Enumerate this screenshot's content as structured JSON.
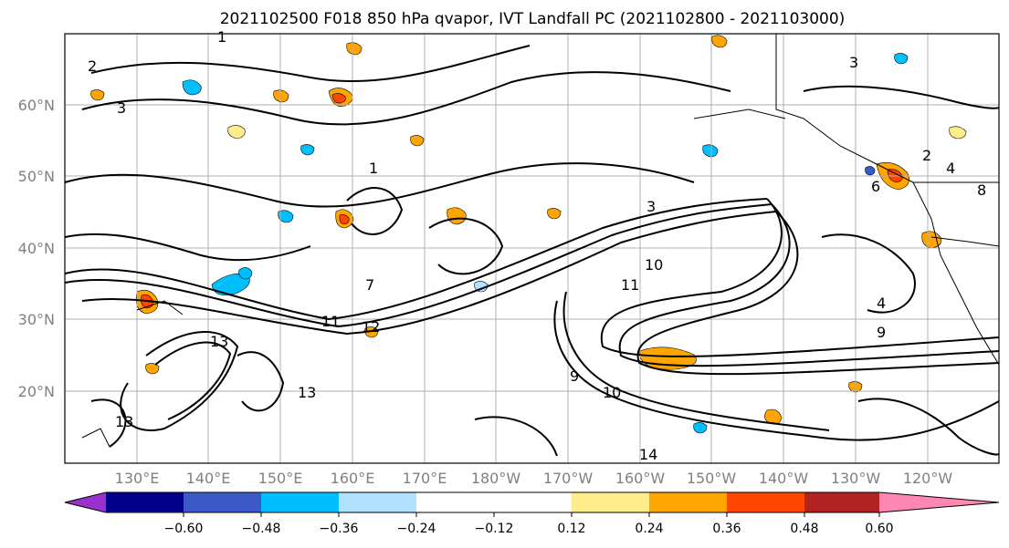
{
  "title": "2021102500 F018 850 hPa qvapor, IVT Landfall PC (2021102800 - 2021103000)",
  "map": {
    "lon_labels": [
      "130°E",
      "140°E",
      "150°E",
      "160°E",
      "170°E",
      "180°W",
      "170°W",
      "160°W",
      "150°W",
      "140°W",
      "130°W",
      "120°W"
    ],
    "lat_labels": [
      "20°N",
      "30°N",
      "40°N",
      "50°N",
      "60°N"
    ],
    "contour_labels": [
      "1",
      "2",
      "3",
      "3",
      "3",
      "4",
      "1",
      "2",
      "6",
      "7",
      "9",
      "10",
      "11",
      "13",
      "11",
      "14",
      "13",
      "13",
      "12",
      "10",
      "9",
      "8",
      "4"
    ]
  },
  "colorbar": {
    "ticks": [
      "−0.60",
      "−0.48",
      "−0.36",
      "−0.24",
      "−0.12",
      "0.12",
      "0.24",
      "0.36",
      "0.48",
      "0.60"
    ],
    "colors": {
      "under": "#9932cc",
      "bins": [
        "#00008b",
        "#3a5bc7",
        "#00bfff",
        "#b0e2ff",
        "#ffffff",
        "#ffec8b",
        "#ffa500",
        "#ff4500",
        "#b22222"
      ],
      "over": "#ff87b4"
    }
  }
}
